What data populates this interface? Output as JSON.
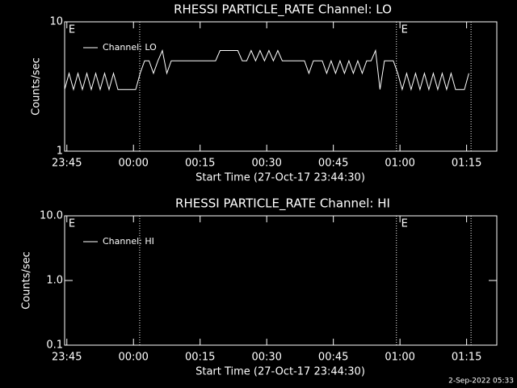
{
  "chart_data": [
    {
      "type": "line",
      "title": "RHESSI PARTICLE_RATE Channel: LO",
      "xlabel": "Start Time (27-Oct-17 23:44:30)",
      "ylabel": "Counts/sec",
      "ylog": true,
      "ylim": [
        1,
        10
      ],
      "yticks": [
        1,
        10
      ],
      "xlim": [
        0,
        97.3
      ],
      "xticks": [
        {
          "value": 0.5,
          "label": "23:45"
        },
        {
          "value": 15.5,
          "label": "00:00"
        },
        {
          "value": 30.5,
          "label": "00:15"
        },
        {
          "value": 45.5,
          "label": "00:30"
        },
        {
          "value": 60.5,
          "label": "00:45"
        },
        {
          "value": 75.5,
          "label": "01:00"
        },
        {
          "value": 90.5,
          "label": "01:15"
        }
      ],
      "markers": [
        16.9,
        74.7,
        91.5
      ],
      "annotations": [
        {
          "text": "E",
          "x": 0.7
        },
        {
          "text": "E",
          "x": 75.6
        }
      ],
      "legend": "upper left",
      "series": [
        {
          "name": "Channel: LO",
          "color": "#ffffff",
          "x": [
            0,
            1,
            2,
            3,
            4,
            5,
            6,
            7,
            8,
            9,
            10,
            11,
            12,
            13,
            14,
            15,
            16,
            17,
            18,
            19,
            20,
            21,
            22,
            23,
            24,
            25,
            26,
            27,
            28,
            29,
            30,
            31,
            32,
            33,
            34,
            35,
            36,
            37,
            38,
            39,
            40,
            41,
            42,
            43,
            44,
            45,
            46,
            47,
            48,
            49,
            50,
            51,
            52,
            53,
            54,
            55,
            56,
            57,
            58,
            59,
            60,
            61,
            62,
            63,
            64,
            65,
            66,
            67,
            68,
            69,
            70,
            71,
            72,
            73,
            74,
            75,
            76,
            77,
            78,
            79,
            80,
            81,
            82,
            83,
            84,
            85,
            86,
            87,
            88,
            89,
            90,
            91
          ],
          "values": [
            3,
            4,
            3,
            4,
            3,
            4,
            3,
            4,
            3,
            4,
            3,
            4,
            3,
            3,
            3,
            3,
            3,
            4,
            5,
            5,
            4,
            5,
            6,
            4,
            5,
            5,
            5,
            5,
            5,
            5,
            5,
            5,
            5,
            5,
            5,
            6,
            6,
            6,
            6,
            6,
            5,
            5,
            6,
            5,
            6,
            5,
            6,
            5,
            6,
            5,
            5,
            5,
            5,
            5,
            5,
            4,
            5,
            5,
            5,
            4,
            5,
            4,
            5,
            4,
            5,
            4,
            5,
            4,
            5,
            5,
            6,
            3,
            5,
            5,
            5,
            4,
            3,
            4,
            3,
            4,
            3,
            4,
            3,
            4,
            3,
            4,
            3,
            4,
            3,
            3,
            3,
            4
          ]
        }
      ]
    },
    {
      "type": "line",
      "title": "RHESSI PARTICLE_RATE Channel: HI",
      "xlabel": "Start Time (27-Oct-17 23:44:30)",
      "ylabel": "Counts/sec",
      "ylog": true,
      "ylim": [
        0.1,
        10
      ],
      "yticks": [
        0.1,
        {
          "value": 1,
          "label": "1.0"
        },
        {
          "value": 10,
          "label": "10.0"
        }
      ],
      "xlim": [
        0,
        97.3
      ],
      "xticks": [
        {
          "value": 0.5,
          "label": "23:45"
        },
        {
          "value": 15.5,
          "label": "00:00"
        },
        {
          "value": 30.5,
          "label": "00:15"
        },
        {
          "value": 45.5,
          "label": "00:30"
        },
        {
          "value": 60.5,
          "label": "00:45"
        },
        {
          "value": 75.5,
          "label": "01:00"
        },
        {
          "value": 90.5,
          "label": "01:15"
        }
      ],
      "markers": [
        16.9,
        74.7,
        91.5
      ],
      "annotations": [
        {
          "text": "E",
          "x": 0.7
        },
        {
          "text": "E",
          "x": 75.6
        }
      ],
      "legend": "upper left",
      "series": [
        {
          "name": "Channel: HI",
          "color": "#ffffff",
          "x": [],
          "values": []
        }
      ]
    }
  ],
  "footer": "2-Sep-2022 05:33"
}
